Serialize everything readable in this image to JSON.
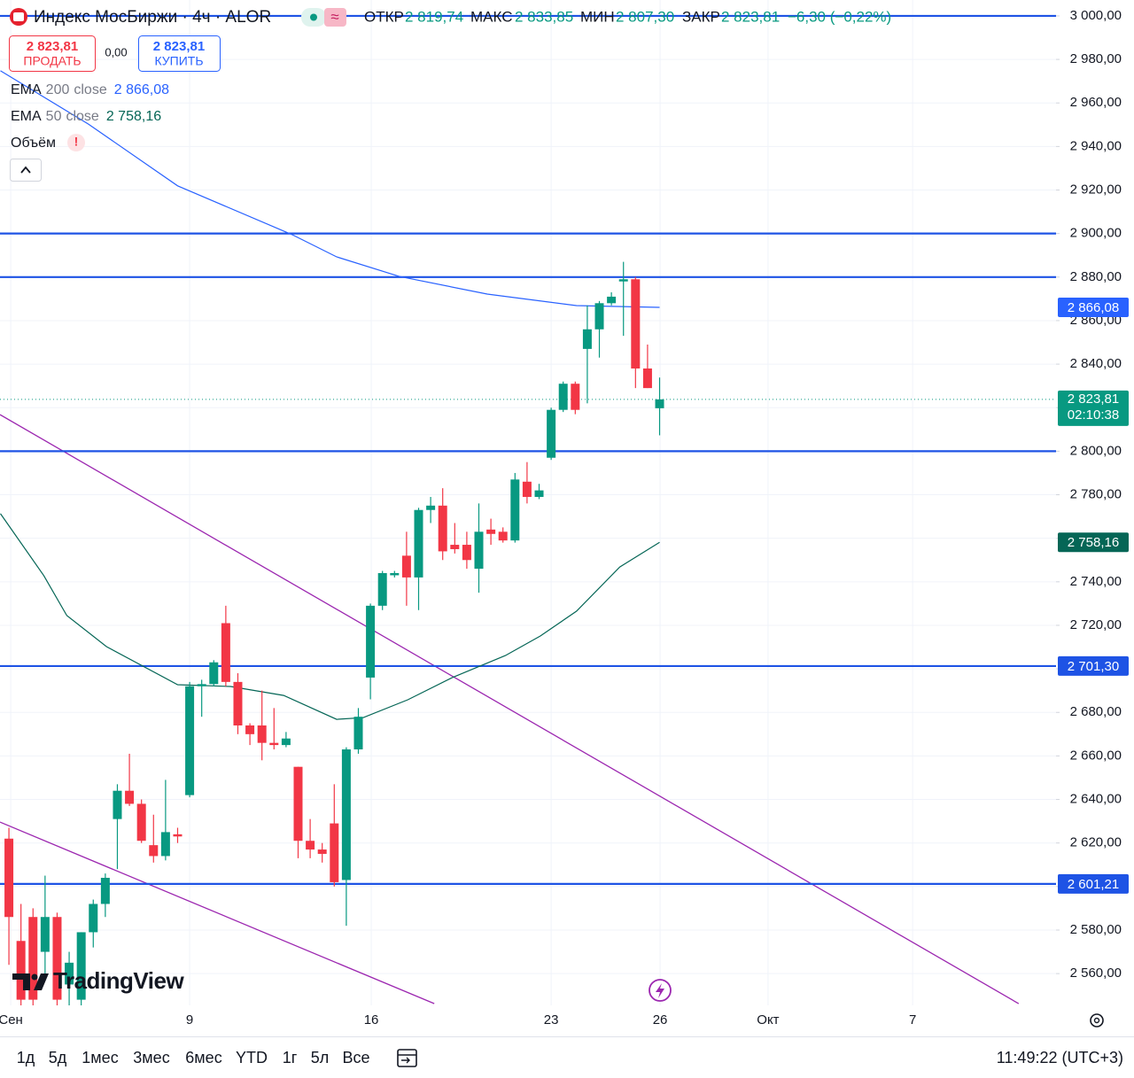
{
  "header": {
    "symbol": "Индекс МосБиржи · 4ч · ALOR",
    "approx": "≈",
    "ohlc": [
      {
        "label": "ОТКР",
        "value": "2 819,74"
      },
      {
        "label": "МАКС",
        "value": "2 833,85"
      },
      {
        "label": "МИН",
        "value": "2 807,30"
      },
      {
        "label": "ЗАКР",
        "value": "2 823,81"
      }
    ],
    "change": "−6,30 (−0,22%)"
  },
  "trade": {
    "sell_price": "2 823,81",
    "sell": "ПРОДАТЬ",
    "spread": "0,00",
    "buy_price": "2 823,81",
    "buy": "КУПИТЬ"
  },
  "volume": {
    "name": "Объём",
    "alert": "!"
  },
  "logo": "TradingView",
  "toolbar": {
    "ranges": [
      "1д",
      "5д",
      "1мес",
      "3мес",
      "6мес",
      "YTD",
      "1г",
      "5л",
      "Все"
    ],
    "clock": "11:49:22 (UTC+3)"
  },
  "chart_data": {
    "type": "candlestick",
    "up_color": "#089981",
    "down_color": "#f23645",
    "grid": true,
    "xlim": [
      -0.74,
      86.9
    ],
    "xticks": [
      {
        "value": 0.15,
        "label": "Сен"
      },
      {
        "value": 15,
        "label": "9"
      },
      {
        "value": 30.07,
        "label": "16"
      },
      {
        "value": 45,
        "label": "23"
      },
      {
        "value": 54.04,
        "label": "26"
      },
      {
        "value": 63,
        "label": "Окт"
      },
      {
        "value": 75,
        "label": "7"
      }
    ],
    "ylim": [
      2545.4,
      3007.3
    ],
    "yticks": [
      {
        "value": 2560,
        "label": "2 560,00"
      },
      {
        "value": 2580,
        "label": "2 580,00"
      },
      {
        "value": 2600,
        "label": "2 600,00"
      },
      {
        "value": 2620,
        "label": "2 620,00"
      },
      {
        "value": 2640,
        "label": "2 640,00"
      },
      {
        "value": 2660,
        "label": "2 660,00"
      },
      {
        "value": 2680,
        "label": "2 680,00"
      },
      {
        "value": 2700,
        "label": "2 700,00"
      },
      {
        "value": 2720,
        "label": "2 720,00"
      },
      {
        "value": 2740,
        "label": "2 740,00"
      },
      {
        "value": 2760,
        "label": "2 760,00"
      },
      {
        "value": 2780,
        "label": "2 780,00"
      },
      {
        "value": 2800,
        "label": "2 800,00"
      },
      {
        "value": 2820,
        "label": "2 820,00"
      },
      {
        "value": 2840,
        "label": "2 840,00"
      },
      {
        "value": 2860,
        "label": "2 860,00"
      },
      {
        "value": 2880,
        "label": "2 880,00"
      },
      {
        "value": 2900,
        "label": "2 900,00"
      },
      {
        "value": 2920,
        "label": "2 920,00"
      },
      {
        "value": 2940,
        "label": "2 940,00"
      },
      {
        "value": 2960,
        "label": "2 960,00"
      },
      {
        "value": 2980,
        "label": "2 980,00"
      },
      {
        "value": 3000,
        "label": "3 000,00"
      }
    ],
    "x": [
      0,
      1,
      2,
      3,
      4,
      5,
      6,
      7,
      8,
      9,
      10,
      11,
      12,
      13,
      14,
      15,
      16,
      17,
      18,
      19,
      20,
      21,
      22,
      23,
      24,
      25,
      26,
      27,
      28,
      29,
      30,
      31,
      32,
      33,
      34,
      35,
      36,
      37,
      38,
      39,
      40,
      41,
      42,
      43,
      44,
      45,
      46,
      47,
      48,
      49,
      50,
      51,
      52,
      53,
      54
    ],
    "open": [
      2622,
      2575,
      2586,
      2570,
      2586,
      2555,
      2548,
      2579,
      2592,
      2631,
      2644,
      2638,
      2619,
      2614,
      2624,
      2642,
      2692,
      2693,
      2721,
      2694,
      2674,
      2674,
      2666,
      2665,
      2655,
      2621,
      2617,
      2629,
      2603,
      2663,
      2696,
      2729,
      2743,
      2752,
      2742,
      2773,
      2775,
      2757,
      2757,
      2746,
      2764,
      2763,
      2759,
      2786,
      2779,
      2797,
      2819,
      2831,
      2847,
      2856,
      2868,
      2878,
      2879,
      2838,
      2819.74
    ],
    "high": [
      2627,
      2592,
      2590,
      2605,
      2588,
      2570,
      2579,
      2594,
      2606,
      2647,
      2661,
      2640,
      2633,
      2649,
      2627,
      2694,
      2695,
      2704,
      2729,
      2698,
      2675,
      2690,
      2682,
      2671,
      2655,
      2631,
      2620,
      2647,
      2664,
      2682,
      2730,
      2745,
      2745,
      2763,
      2774,
      2779,
      2783,
      2767,
      2763,
      2776,
      2769,
      2765,
      2790,
      2795,
      2785,
      2820,
      2832,
      2832,
      2867,
      2869,
      2873,
      2887,
      2880,
      2849,
      2833.85
    ],
    "low": [
      2564,
      2545,
      2545,
      2560,
      2545,
      2545,
      2545,
      2572,
      2586,
      2608,
      2637,
      2620,
      2611,
      2612,
      2620,
      2641,
      2678,
      2692,
      2692,
      2670,
      2665,
      2658,
      2663,
      2664,
      2613,
      2613,
      2611,
      2600,
      2582,
      2661,
      2686,
      2727,
      2742,
      2729,
      2727,
      2767,
      2750,
      2753,
      2746,
      2735,
      2757,
      2758,
      2758,
      2776,
      2778,
      2796,
      2818,
      2817,
      2822,
      2843,
      2867,
      2853,
      2829,
      2829,
      2807.3
    ],
    "close": [
      2586,
      2548,
      2548,
      2586,
      2548,
      2565,
      2579,
      2592,
      2604,
      2644,
      2638,
      2621,
      2614,
      2625,
      2623,
      2692,
      2693,
      2703,
      2694,
      2674,
      2670,
      2666,
      2665,
      2668,
      2621,
      2617,
      2615,
      2602,
      2663,
      2678,
      2729,
      2744,
      2744,
      2742,
      2773,
      2775,
      2754,
      2755,
      2750,
      2763,
      2762,
      2759,
      2787,
      2779,
      2782,
      2819,
      2831,
      2819,
      2856,
      2868,
      2871,
      2879,
      2838,
      2829,
      2823.81
    ],
    "last_price_label": "2 823,81",
    "countdown": "02:10:38",
    "series": [
      {
        "name": "EMA",
        "length": 200,
        "source": "close",
        "color": "#2962ff",
        "last_label": "2 866,08",
        "x": [
          -0.7,
          6.6,
          14,
          23.5,
          27.2,
          32.4,
          39.7,
          47.1,
          54
        ],
        "values": [
          2974.8,
          2950.3,
          2921.9,
          2899.5,
          2889.3,
          2880.3,
          2872.2,
          2866.9,
          2866.08
        ]
      },
      {
        "name": "EMA",
        "length": 50,
        "source": "close",
        "color": "#056656",
        "last_label": "2 758,16",
        "x": [
          -0.7,
          2.9,
          4.8,
          8.1,
          14,
          18.4,
          22.8,
          27.2,
          29.4,
          33.1,
          36.8,
          41.2,
          44.1,
          47.1,
          50.7,
          54
        ],
        "values": [
          2771.3,
          2742.8,
          2724.5,
          2710.2,
          2692.7,
          2691.9,
          2687.8,
          2676.8,
          2677.6,
          2685.8,
          2696.0,
          2706.1,
          2715.1,
          2726.5,
          2746.8,
          2758.16
        ]
      }
    ],
    "levels": {
      "color": "#1e53e5",
      "values": [
        3000,
        2900,
        2880,
        2800,
        2701.3,
        2601.21
      ],
      "value_labels": [
        null,
        null,
        null,
        null,
        "2 701,30",
        "2 601,21"
      ]
    },
    "trend_lines": [
      {
        "color": "#9c27b0",
        "x": [
          -0.74,
          83.8
        ],
        "values": [
          2816.8,
          2546.2
        ]
      },
      {
        "color": "#9c27b0",
        "x": [
          -0.74,
          35.3
        ],
        "values": [
          2629.6,
          2546.2
        ]
      }
    ]
  }
}
